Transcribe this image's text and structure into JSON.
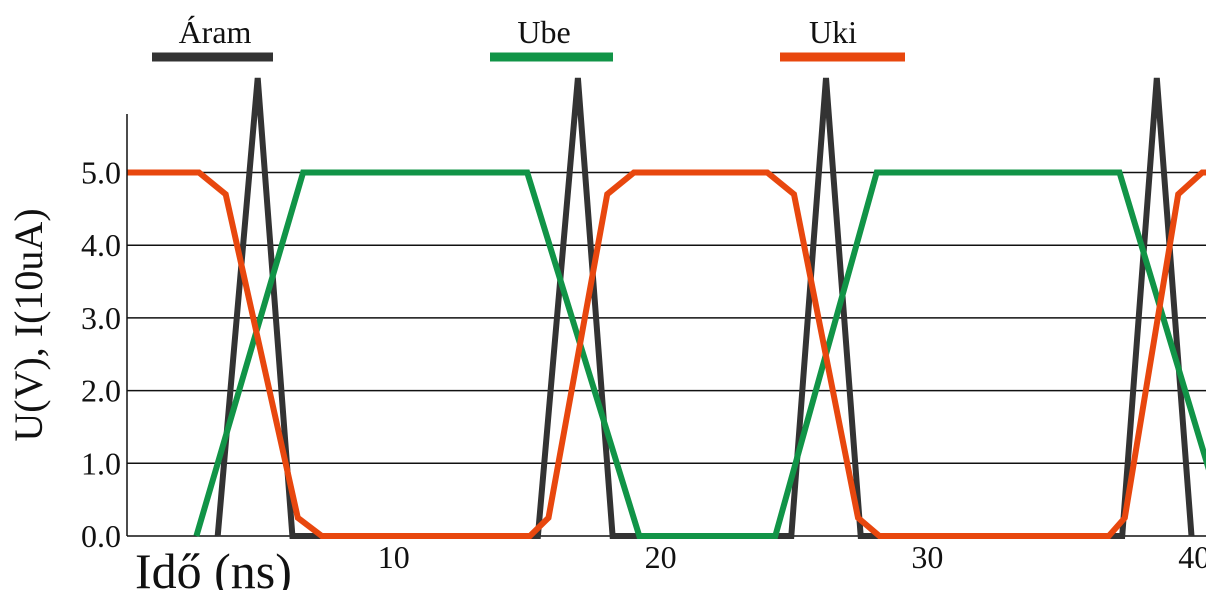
{
  "chart_data": {
    "type": "line",
    "xlabel": "Idő (ns)",
    "ylabel": "U(V), I(10uA)",
    "xlim": [
      0,
      43.5
    ],
    "ylim": [
      0,
      5.75
    ],
    "x_ticks": [
      {
        "value": 10,
        "label": "10"
      },
      {
        "value": 20,
        "label": "20"
      },
      {
        "value": 30,
        "label": "30"
      },
      {
        "value": 40,
        "label": "40"
      }
    ],
    "y_ticks": [
      {
        "value": 0,
        "label": "0.0"
      },
      {
        "value": 1,
        "label": "1.0"
      },
      {
        "value": 2,
        "label": "2.0"
      },
      {
        "value": 3,
        "label": "3.0"
      },
      {
        "value": 4,
        "label": "4.0"
      },
      {
        "value": 5,
        "label": "5.0"
      }
    ],
    "grid": "horizontal",
    "legend_position": "top",
    "series": [
      {
        "name": "Áram",
        "color": "#333333",
        "points": [
          [
            3.4,
            0
          ],
          [
            4.9,
            6.3
          ],
          [
            6.2,
            0
          ],
          [
            15.4,
            0
          ],
          [
            16.9,
            6.3
          ],
          [
            18.2,
            0
          ],
          [
            24.9,
            0
          ],
          [
            26.2,
            6.3
          ],
          [
            27.5,
            0
          ],
          [
            37.3,
            0
          ],
          [
            38.6,
            6.3
          ],
          [
            39.9,
            0
          ]
        ]
      },
      {
        "name": "Ube",
        "color": "#119447",
        "points": [
          [
            2.6,
            0
          ],
          [
            6.6,
            5.0
          ],
          [
            15.0,
            5.0
          ],
          [
            19.2,
            0
          ],
          [
            24.3,
            0
          ],
          [
            28.1,
            5.0
          ],
          [
            37.2,
            5.0
          ],
          [
            41.3,
            0
          ]
        ]
      },
      {
        "name": "Uki",
        "color": "#e8470e",
        "points": [
          [
            0,
            5.0
          ],
          [
            2.7,
            5.0
          ],
          [
            3.7,
            4.7
          ],
          [
            6.4,
            0.25
          ],
          [
            7.3,
            0
          ],
          [
            15.1,
            0
          ],
          [
            15.8,
            0.25
          ],
          [
            18.0,
            4.7
          ],
          [
            19.0,
            5.0
          ],
          [
            24.0,
            5.0
          ],
          [
            25.0,
            4.7
          ],
          [
            27.4,
            0.25
          ],
          [
            28.2,
            0
          ],
          [
            36.8,
            0
          ],
          [
            37.4,
            0.25
          ],
          [
            39.4,
            4.7
          ],
          [
            40.3,
            5.0
          ],
          [
            43.5,
            5.0
          ]
        ]
      }
    ]
  }
}
